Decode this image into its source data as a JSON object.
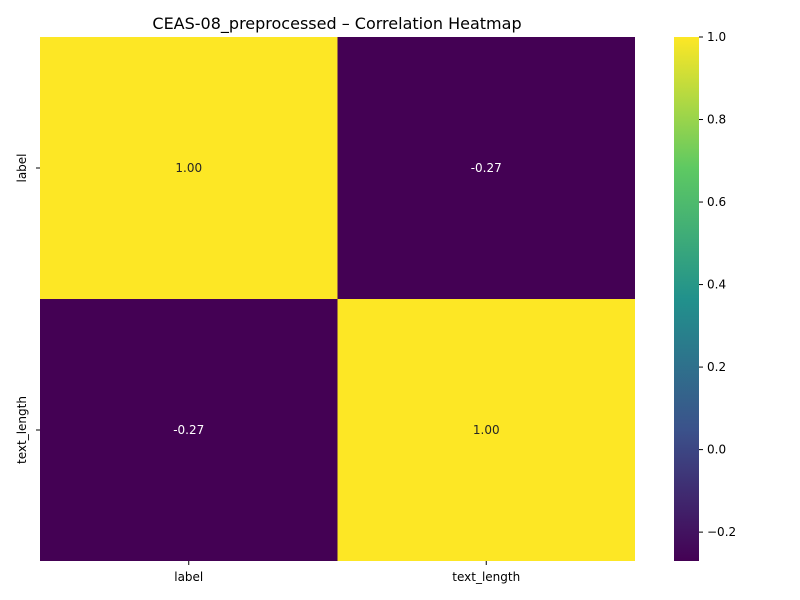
{
  "chart_data": {
    "type": "heatmap",
    "title": "CEAS-08_preprocessed – Correlation Heatmap",
    "x_categories": [
      "label",
      "text_length"
    ],
    "y_categories": [
      "label",
      "text_length"
    ],
    "values": [
      [
        1.0,
        -0.27
      ],
      [
        -0.27,
        1.0
      ]
    ],
    "annotations": [
      [
        "1.00",
        "-0.27"
      ],
      [
        "-0.27",
        "1.00"
      ]
    ],
    "colormap": "viridis",
    "value_range": [
      -0.27,
      1.0
    ],
    "colorbar_ticks": [
      1.0,
      0.8,
      0.6,
      0.4,
      0.2,
      0.0,
      -0.2
    ],
    "colorbar_tick_labels": [
      "1.0",
      "0.8",
      "0.6",
      "0.4",
      "0.2",
      "0.0",
      "−0.2"
    ],
    "colorbar_gradient_colors": [
      "#fde725",
      "#5ec962",
      "#21918c",
      "#3b528b",
      "#440154"
    ],
    "grid": false
  }
}
